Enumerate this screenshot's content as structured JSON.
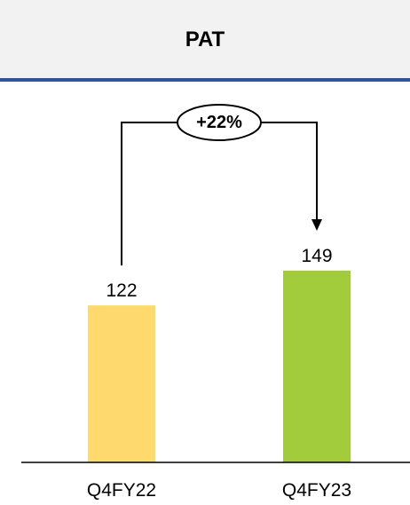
{
  "header": {
    "title": "PAT"
  },
  "chart_data": {
    "type": "bar",
    "title": "PAT",
    "categories": [
      "Q4FY22",
      "Q4FY23"
    ],
    "values": [
      122,
      149
    ],
    "bar_colors": [
      "#fdd96e",
      "#a3cc3d"
    ],
    "ylim": [
      0,
      280
    ],
    "grid": false,
    "annotation": {
      "text": "+22%",
      "from": "Q4FY22",
      "to": "Q4FY23"
    }
  }
}
